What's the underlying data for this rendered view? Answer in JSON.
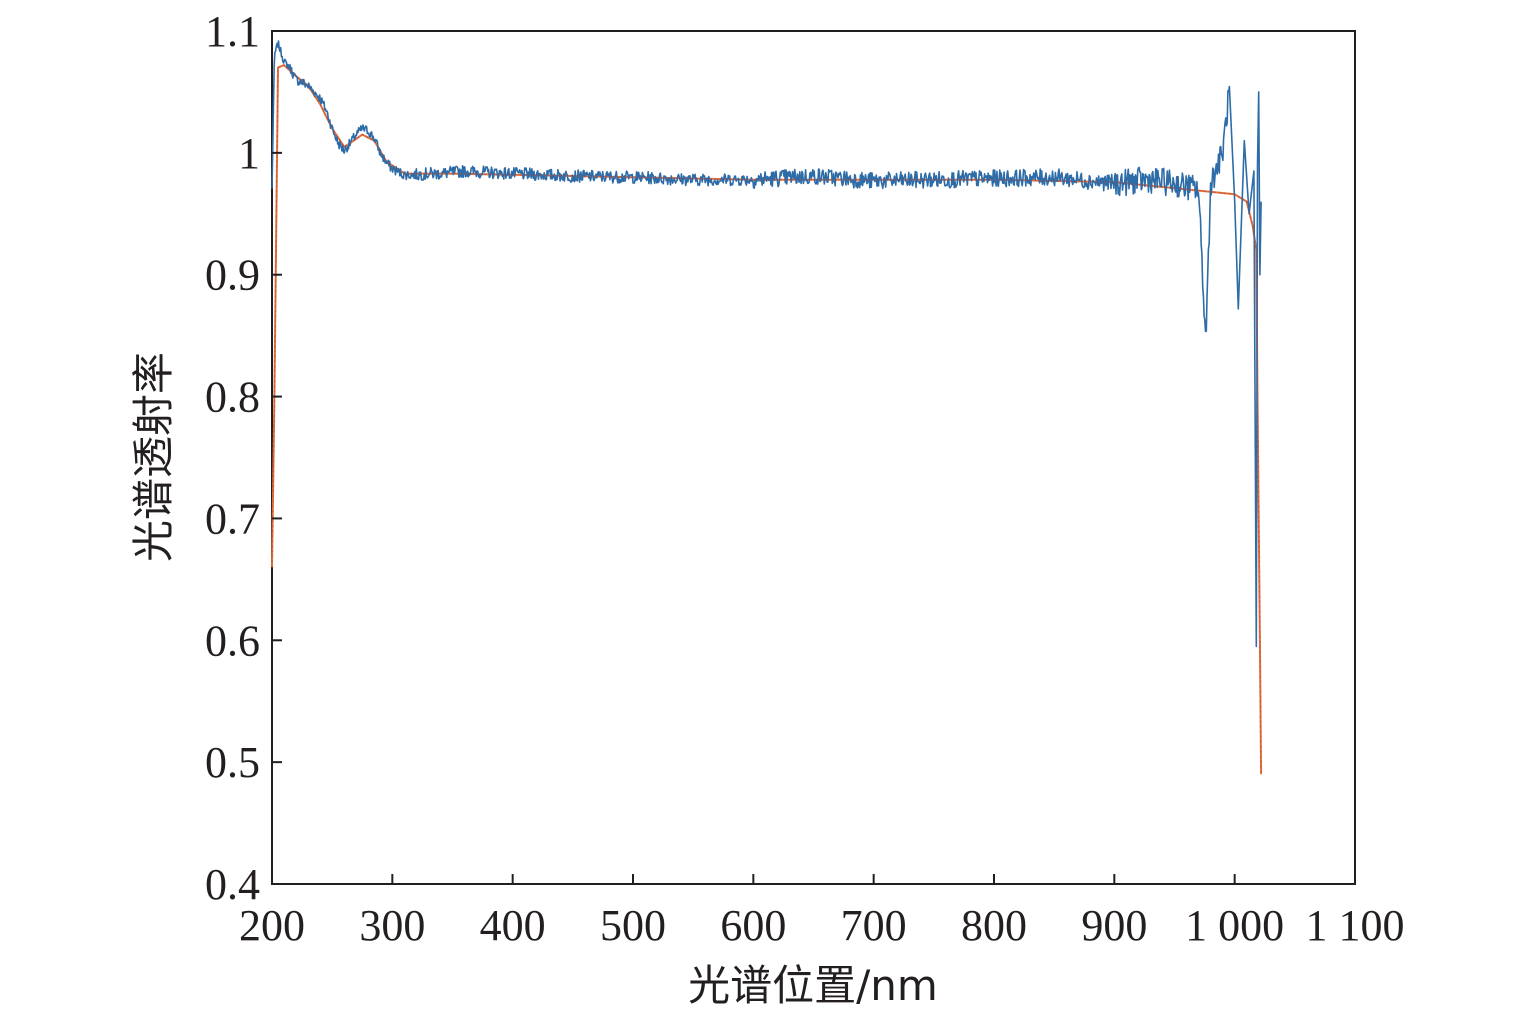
{
  "chart_data": {
    "type": "line",
    "title": "",
    "xlabel": "光谱位置/nm",
    "ylabel": "光谱透射率",
    "xlim": [
      200,
      1100
    ],
    "ylim": [
      0.4,
      1.1
    ],
    "x_ticks": [
      200,
      300,
      400,
      500,
      600,
      700,
      800,
      900,
      1000,
      1100
    ],
    "x_tick_labels": [
      "200",
      "300",
      "400",
      "500",
      "600",
      "700",
      "800",
      "900",
      "1 000",
      "1 100"
    ],
    "y_ticks": [
      0.4,
      0.5,
      0.6,
      0.7,
      0.8,
      0.9,
      1.0,
      1.1
    ],
    "y_tick_labels": [
      "0.4",
      "0.5",
      "0.6",
      "0.7",
      "0.8",
      "0.9",
      "1",
      "1.1"
    ],
    "grid": false,
    "legend": "none",
    "series": [
      {
        "color": "#2e6ca8",
        "style": "noisy",
        "x": [
          200,
          202,
          205,
          210,
          215,
          220,
          225,
          230,
          235,
          240,
          245,
          250,
          255,
          260,
          265,
          270,
          275,
          280,
          285,
          290,
          295,
          300,
          310,
          320,
          330,
          340,
          350,
          360,
          380,
          400,
          450,
          500,
          550,
          600,
          650,
          700,
          750,
          800,
          850,
          900,
          930,
          950,
          970,
          976,
          980,
          990,
          996,
          1000,
          1003,
          1008,
          1012,
          1016,
          1018,
          1019,
          1020,
          1021,
          1022
        ],
        "y": [
          0.97,
          1.08,
          1.09,
          1.075,
          1.07,
          1.06,
          1.058,
          1.055,
          1.05,
          1.045,
          1.035,
          1.02,
          1.008,
          1.002,
          1.008,
          1.015,
          1.02,
          1.018,
          1.012,
          1.0,
          0.992,
          0.987,
          0.982,
          0.982,
          0.983,
          0.983,
          0.984,
          0.985,
          0.984,
          0.983,
          0.981,
          0.98,
          0.978,
          0.978,
          0.981,
          0.977,
          0.978,
          0.979,
          0.98,
          0.975,
          0.978,
          0.975,
          0.97,
          0.845,
          0.975,
          1.0,
          1.055,
          0.96,
          0.872,
          1.01,
          0.95,
          0.985,
          0.595,
          0.99,
          1.05,
          0.9,
          0.96
        ]
      },
      {
        "color": "#e0703a",
        "style": "smooth",
        "x": [
          200,
          202,
          205,
          210,
          220,
          230,
          240,
          250,
          260,
          265,
          275,
          285,
          295,
          310,
          350,
          400,
          500,
          600,
          700,
          800,
          900,
          1000,
          1010,
          1015,
          1018,
          1019,
          1020,
          1021,
          1022
        ],
        "y": [
          0.66,
          0.8,
          1.07,
          1.072,
          1.063,
          1.055,
          1.04,
          1.02,
          1.005,
          1.008,
          1.015,
          1.01,
          0.993,
          0.983,
          0.983,
          0.982,
          0.98,
          0.978,
          0.978,
          0.978,
          0.976,
          0.966,
          0.96,
          0.94,
          0.92,
          0.8,
          0.7,
          0.6,
          0.49
        ]
      }
    ]
  }
}
